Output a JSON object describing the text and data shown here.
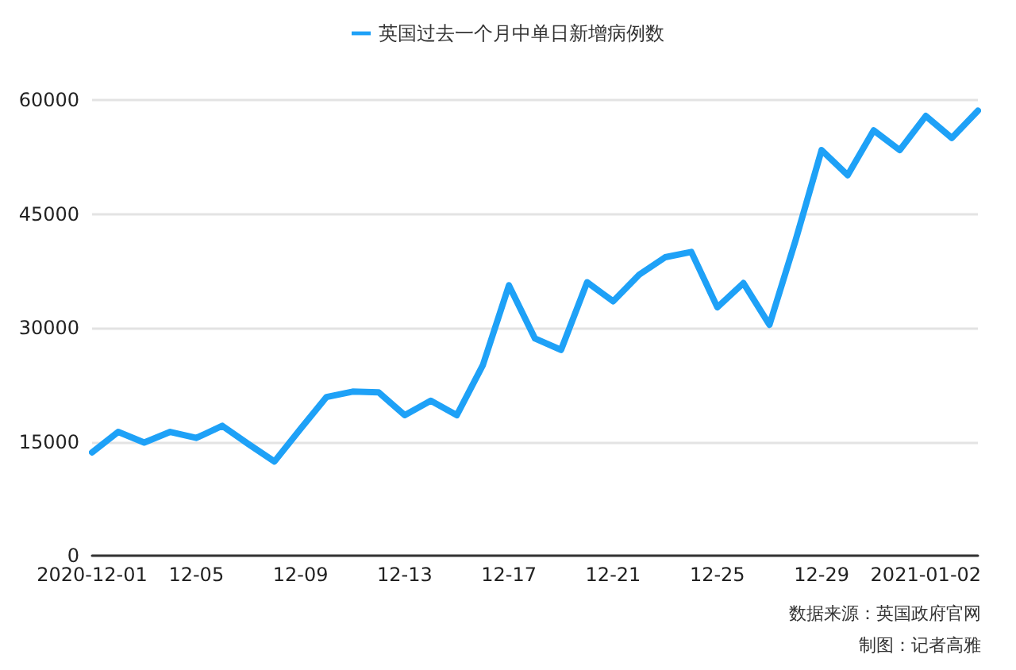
{
  "chart_data": {
    "type": "line",
    "categories": [
      "2020-12-01",
      null,
      null,
      null,
      "12-05",
      null,
      null,
      null,
      "12-09",
      null,
      null,
      null,
      "12-13",
      null,
      null,
      null,
      "12-17",
      null,
      null,
      null,
      "12-21",
      null,
      null,
      null,
      "12-25",
      null,
      null,
      null,
      "12-29",
      null,
      null,
      null,
      "2021-01-02",
      null,
      null
    ],
    "series": [
      {
        "name": "英国过去一个月中单日新增病例数",
        "color": "#1ea1f7",
        "values": [
          13600,
          16300,
          14900,
          16300,
          15500,
          17100,
          14700,
          12400,
          16700,
          20900,
          21600,
          21500,
          18500,
          20400,
          18500,
          25100,
          35600,
          28600,
          27100,
          36000,
          33500,
          37000,
          39300,
          40000,
          32700,
          35900,
          30400,
          41500,
          53400,
          50100,
          56000,
          53400,
          57900,
          55000,
          58600
        ]
      }
    ],
    "ylim": [
      0,
      60000
    ],
    "yticks": [
      0,
      15000,
      30000,
      45000,
      60000
    ],
    "grid": "y",
    "legend": "top",
    "marker": "none",
    "line_style": "solid",
    "annotations": [
      "数据来源：英国政府官网",
      "制图：记者高雅"
    ]
  }
}
